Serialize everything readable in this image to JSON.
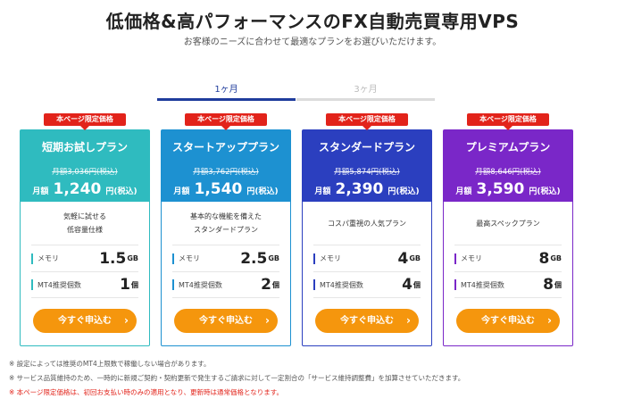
{
  "header": {
    "title": "低価格&高パフォーマンスのFX自動売買専用VPS",
    "subtitle": "お客様のニーズに合わせて最適なプランをお選びいただけます。"
  },
  "tabs": [
    {
      "label": "1ヶ月",
      "active": true
    },
    {
      "label": "3ヶ月",
      "active": false
    }
  ],
  "colors": {
    "plan1": "#2fbbbf",
    "plan2": "#1d91d1",
    "plan3": "#2b3fbf",
    "plan4": "#7a27c8",
    "badge": "#e2231a",
    "cta": "#f5960d"
  },
  "plans": [
    {
      "badge": "本ページ限定価格",
      "name": "短期お試しプラン",
      "old_price": "月額3,036円(税込)",
      "price_prefix": "月額",
      "price": "1,240",
      "price_suffix": "円(税込)",
      "desc1": "気軽に試せる",
      "desc2": "低容量仕様",
      "memory_label": "メモリ",
      "memory_value": "1.5",
      "memory_unit": "GB",
      "mt4_label": "MT4推奨個数",
      "mt4_value": "1",
      "mt4_unit": "個",
      "cta": "今すぐ申込む"
    },
    {
      "badge": "本ページ限定価格",
      "name": "スタートアッププラン",
      "old_price": "月額3,762円(税込)",
      "price_prefix": "月額",
      "price": "1,540",
      "price_suffix": "円(税込)",
      "desc1": "基本的な機能を備えた",
      "desc2": "スタンダードプラン",
      "memory_label": "メモリ",
      "memory_value": "2.5",
      "memory_unit": "GB",
      "mt4_label": "MT4推奨個数",
      "mt4_value": "2",
      "mt4_unit": "個",
      "cta": "今すぐ申込む"
    },
    {
      "badge": "本ページ限定価格",
      "name": "スタンダードプラン",
      "old_price": "月額5,874円(税込)",
      "price_prefix": "月額",
      "price": "2,390",
      "price_suffix": "円(税込)",
      "desc1": "コスパ重視の人気プラン",
      "desc2": "",
      "memory_label": "メモリ",
      "memory_value": "4",
      "memory_unit": "GB",
      "mt4_label": "MT4推奨個数",
      "mt4_value": "4",
      "mt4_unit": "個",
      "cta": "今すぐ申込む"
    },
    {
      "badge": "本ページ限定価格",
      "name": "プレミアムプラン",
      "old_price": "月額8,646円(税込)",
      "price_prefix": "月額",
      "price": "3,590",
      "price_suffix": "円(税込)",
      "desc1": "最高スペックプラン",
      "desc2": "",
      "memory_label": "メモリ",
      "memory_value": "8",
      "memory_unit": "GB",
      "mt4_label": "MT4推奨個数",
      "mt4_value": "8",
      "mt4_unit": "個",
      "cta": "今すぐ申込む"
    }
  ],
  "notes": [
    "※ 設定によっては推奨のMT4上限数で稼働しない場合があります。",
    "※ サービス品質維持のため、一時的に新規ご契約・契約更新で発生するご請求に対して一定割合の「サービス維持調整費」を加算させていただきます。",
    "※ 本ページ限定価格は、初回お支払い時のみの適用となり、更新時は通常価格となります。"
  ]
}
